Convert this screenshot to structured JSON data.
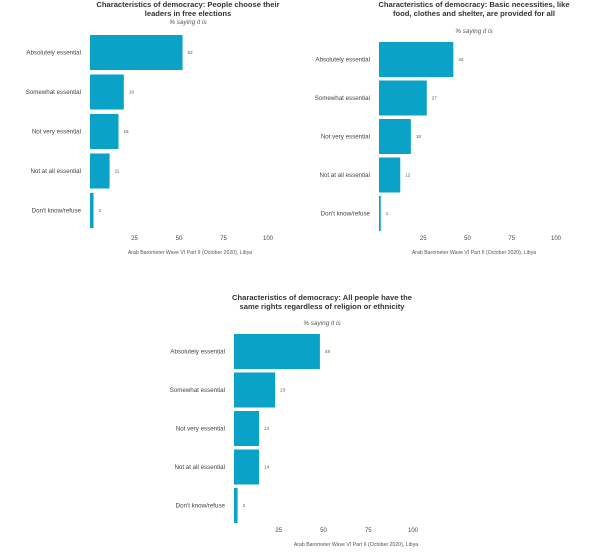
{
  "chart_data": [
    {
      "type": "bar",
      "orientation": "horizontal",
      "title": "Characteristics of democracy: People choose their leaders in free elections",
      "subtitle": "% saying it is",
      "source": "Arab Barometer Wave VI Part II (October 2020), Libya",
      "categories": [
        "Absolutely essential",
        "Somewhat essential",
        "Not very essential",
        "Not at all essential",
        "Don't know/refuse"
      ],
      "values": [
        52,
        19,
        16,
        11,
        2
      ],
      "xticks": [
        25,
        50,
        75,
        100
      ],
      "xlim": [
        0,
        100
      ],
      "color": "#0aa3c7"
    },
    {
      "type": "bar",
      "orientation": "horizontal",
      "title": "Characteristics of democracy: Basic necessities, like food, clothes and shelter, are provided for all",
      "subtitle": "% saying it is",
      "source": "Arab Barometer Wave VI Part II (October 2020), Libya",
      "categories": [
        "Absolutely essential",
        "Somewhat essential",
        "Not very essential",
        "Not at all essential",
        "Don't know/refuse"
      ],
      "values": [
        42,
        27,
        18,
        12,
        1
      ],
      "xticks": [
        25,
        50,
        75,
        100
      ],
      "xlim": [
        0,
        100
      ],
      "color": "#0aa3c7"
    },
    {
      "type": "bar",
      "orientation": "horizontal",
      "title": "Characteristics of democracy: All people have the same rights regardless of religion or ethnicity",
      "subtitle": "% saying it is",
      "source": "Arab Barometer Wave VI Part II (October 2020), Libya",
      "categories": [
        "Absolutely essential",
        "Somewhat essential",
        "Not very essential",
        "Not at all essential",
        "Don't know/refuse"
      ],
      "values": [
        48,
        23,
        14,
        14,
        2
      ],
      "xticks": [
        25,
        50,
        75,
        100
      ],
      "xlim": [
        0,
        100
      ],
      "color": "#0aa3c7"
    }
  ]
}
